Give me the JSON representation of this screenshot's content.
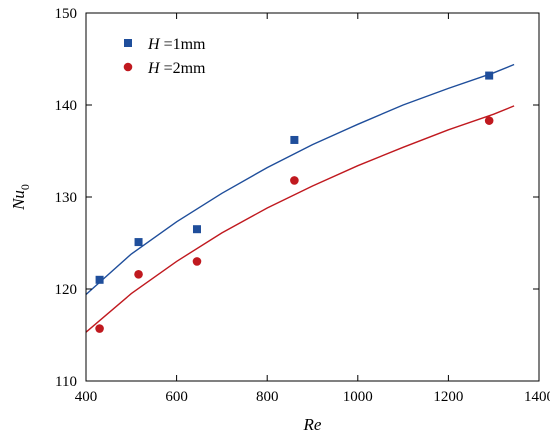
{
  "chart_data": {
    "type": "scatter",
    "title": "",
    "xlabel": "Re",
    "ylabel_base": "Nu",
    "ylabel_sub": "0",
    "xlim": [
      400,
      1400
    ],
    "ylim": [
      110,
      150
    ],
    "xticks": [
      400,
      600,
      800,
      1000,
      1200,
      1400
    ],
    "yticks": [
      110,
      120,
      130,
      140,
      150
    ],
    "grid": false,
    "legend_position": "top-left",
    "series": [
      {
        "name": "H =1mm",
        "name_var": "H",
        "name_rest": " =1mm",
        "marker": "square",
        "color": "#1f4e9b",
        "points": [
          {
            "x": 430,
            "y": 121.0
          },
          {
            "x": 516,
            "y": 125.1
          },
          {
            "x": 645,
            "y": 126.5
          },
          {
            "x": 860,
            "y": 136.2
          },
          {
            "x": 1290,
            "y": 143.2
          }
        ],
        "fit_line": [
          {
            "x": 400,
            "y": 119.4
          },
          {
            "x": 500,
            "y": 123.8
          },
          {
            "x": 600,
            "y": 127.3
          },
          {
            "x": 700,
            "y": 130.4
          },
          {
            "x": 800,
            "y": 133.2
          },
          {
            "x": 900,
            "y": 135.7
          },
          {
            "x": 1000,
            "y": 137.9
          },
          {
            "x": 1100,
            "y": 140.0
          },
          {
            "x": 1200,
            "y": 141.8
          },
          {
            "x": 1300,
            "y": 143.5
          },
          {
            "x": 1345,
            "y": 144.4
          }
        ]
      },
      {
        "name": "H =2mm",
        "name_var": "H",
        "name_rest": " =2mm",
        "marker": "circle",
        "color": "#c0191f",
        "points": [
          {
            "x": 430,
            "y": 115.7
          },
          {
            "x": 516,
            "y": 121.6
          },
          {
            "x": 645,
            "y": 123.0
          },
          {
            "x": 860,
            "y": 131.8
          },
          {
            "x": 1290,
            "y": 138.3
          }
        ],
        "fit_line": [
          {
            "x": 400,
            "y": 115.3
          },
          {
            "x": 500,
            "y": 119.5
          },
          {
            "x": 600,
            "y": 123.0
          },
          {
            "x": 700,
            "y": 126.1
          },
          {
            "x": 800,
            "y": 128.8
          },
          {
            "x": 900,
            "y": 131.2
          },
          {
            "x": 1000,
            "y": 133.4
          },
          {
            "x": 1100,
            "y": 135.4
          },
          {
            "x": 1200,
            "y": 137.3
          },
          {
            "x": 1300,
            "y": 139.0
          },
          {
            "x": 1345,
            "y": 139.9
          }
        ]
      }
    ]
  }
}
